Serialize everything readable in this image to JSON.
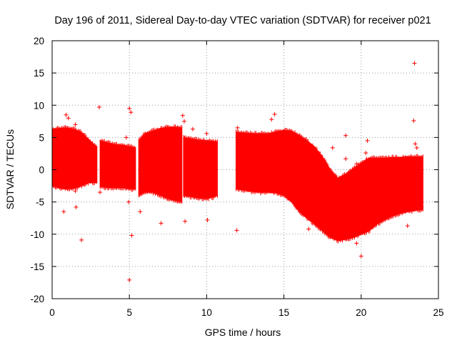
{
  "chart_data": {
    "type": "scatter",
    "title": "Day 196 of 2011, Sidereal Day-to-day VTEC variation (SDTVAR) for receiver p021",
    "xlabel": "GPS time / hours",
    "ylabel": "SDTVAR / TECUs",
    "xlim": [
      0,
      25
    ],
    "ylim": [
      -20,
      20
    ],
    "xticks": [
      "0",
      "5",
      "10",
      "15",
      "20",
      "25"
    ],
    "xtick_values": [
      0,
      5,
      10,
      15,
      20,
      25
    ],
    "yticks": [
      "-20",
      "-15",
      "-10",
      "-5",
      "0",
      "5",
      "10",
      "15",
      "20"
    ],
    "ytick_values": [
      -20,
      -15,
      -10,
      -5,
      0,
      5,
      10,
      15,
      20
    ],
    "grid": true,
    "marker": "+",
    "color": "#ff0000",
    "series": [
      {
        "name": "SDTVAR",
        "dense_band_segments": [
          {
            "x": [
              0.0,
              0.4,
              0.9,
              1.4,
              1.9,
              2.4,
              2.9
            ],
            "upper": [
              6.3,
              6.4,
              6.5,
              6.3,
              5.8,
              4.6,
              3.5
            ],
            "lower": [
              -2.5,
              -2.8,
              -3.0,
              -2.9,
              -2.5,
              -2.0,
              -2.0
            ]
          },
          {
            "x": [
              3.1,
              3.6,
              4.1,
              4.6,
              5.0,
              5.4
            ],
            "upper": [
              4.5,
              4.2,
              3.9,
              3.8,
              3.6,
              3.4
            ],
            "lower": [
              -2.6,
              -2.8,
              -2.8,
              -2.8,
              -3.0,
              -3.0
            ]
          },
          {
            "x": [
              5.6,
              6.0,
              6.5,
              7.0,
              7.5,
              8.0,
              8.4
            ],
            "upper": [
              4.5,
              5.6,
              6.0,
              6.4,
              6.6,
              6.6,
              6.5
            ],
            "lower": [
              -4.0,
              -3.5,
              -3.5,
              -4.0,
              -4.5,
              -4.8,
              -5.0
            ]
          },
          {
            "x": [
              8.5,
              9.0,
              9.5,
              10.0,
              10.5,
              10.7
            ],
            "upper": [
              5.0,
              4.8,
              4.6,
              4.5,
              4.4,
              4.3
            ],
            "lower": [
              -4.0,
              -4.2,
              -4.4,
              -4.5,
              -4.2,
              -4.0
            ]
          },
          {
            "x": [
              11.9,
              12.5,
              13.0,
              13.5,
              14.0,
              14.5,
              15.0,
              15.5,
              16.0
            ],
            "upper": [
              5.8,
              5.7,
              5.6,
              5.6,
              5.6,
              5.9,
              6.1,
              6.0,
              5.3
            ],
            "lower": [
              -3.0,
              -3.2,
              -3.4,
              -3.5,
              -3.5,
              -3.6,
              -4.0,
              -5.0,
              -6.5
            ]
          },
          {
            "x": [
              16.0,
              16.5,
              17.0,
              17.5,
              18.0,
              18.5,
              19.0,
              19.5,
              20.0,
              20.5,
              21.0,
              21.5,
              22.0,
              22.5,
              23.0,
              23.5,
              24.0
            ],
            "upper": [
              5.3,
              4.5,
              3.5,
              2.0,
              0.0,
              -1.3,
              -0.7,
              0.2,
              1.0,
              1.8,
              1.8,
              1.8,
              1.9,
              1.9,
              2.0,
              2.0,
              2.0
            ],
            "lower": [
              -6.5,
              -7.5,
              -8.5,
              -9.5,
              -10.5,
              -11.0,
              -10.8,
              -10.5,
              -10.0,
              -9.5,
              -8.5,
              -7.8,
              -7.2,
              -6.8,
              -6.5,
              -6.3,
              -6.2
            ]
          }
        ],
        "points": [
          {
            "x": 0.75,
            "y": -6.5
          },
          {
            "x": 0.9,
            "y": 8.5
          },
          {
            "x": 1.05,
            "y": 8.0
          },
          {
            "x": 1.5,
            "y": 7.0
          },
          {
            "x": 1.5,
            "y": -3.3
          },
          {
            "x": 1.55,
            "y": -5.8
          },
          {
            "x": 1.9,
            "y": -10.9
          },
          {
            "x": 3.05,
            "y": 9.7
          },
          {
            "x": 3.1,
            "y": -3.5
          },
          {
            "x": 4.8,
            "y": 5.0
          },
          {
            "x": 4.95,
            "y": -5.0
          },
          {
            "x": 5.0,
            "y": 9.5
          },
          {
            "x": 5.1,
            "y": 8.9
          },
          {
            "x": 5.15,
            "y": -10.2
          },
          {
            "x": 5.0,
            "y": -17.1
          },
          {
            "x": 5.7,
            "y": -6.5
          },
          {
            "x": 7.05,
            "y": -8.3
          },
          {
            "x": 8.45,
            "y": 8.4
          },
          {
            "x": 8.55,
            "y": 7.5
          },
          {
            "x": 8.6,
            "y": -8.0
          },
          {
            "x": 9.1,
            "y": 6.3
          },
          {
            "x": 10.0,
            "y": 5.6
          },
          {
            "x": 10.05,
            "y": -7.8
          },
          {
            "x": 11.95,
            "y": -9.4
          },
          {
            "x": 12.0,
            "y": 6.5
          },
          {
            "x": 14.2,
            "y": 7.8
          },
          {
            "x": 14.4,
            "y": 8.6
          },
          {
            "x": 16.6,
            "y": -9.2
          },
          {
            "x": 18.15,
            "y": 3.4
          },
          {
            "x": 19.0,
            "y": 5.3
          },
          {
            "x": 19.0,
            "y": 1.7
          },
          {
            "x": 19.7,
            "y": -11.4
          },
          {
            "x": 19.7,
            "y": 0.9
          },
          {
            "x": 20.0,
            "y": -13.4
          },
          {
            "x": 20.3,
            "y": 2.6
          },
          {
            "x": 20.4,
            "y": 4.5
          },
          {
            "x": 23.0,
            "y": -8.7
          },
          {
            "x": 23.4,
            "y": 7.6
          },
          {
            "x": 23.45,
            "y": 16.5
          },
          {
            "x": 23.5,
            "y": 4.0
          },
          {
            "x": 23.6,
            "y": 3.4
          },
          {
            "x": 23.9,
            "y": -5.8
          }
        ]
      }
    ]
  }
}
